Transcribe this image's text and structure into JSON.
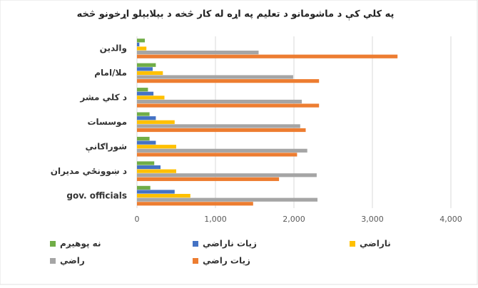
{
  "chart_data": {
    "type": "hbar",
    "title": "په کلي کې د ماشومانو د تعلیم په اړه له کار څخه د بېلابېلو اړخونو څخه",
    "categories": [
      "والدین",
      "ملا/امام",
      "د کلي مشر",
      "موسسات",
      "شوراګانې",
      "د ښوونځي مدیران",
      "gov. officials"
    ],
    "series": [
      {
        "name": "نه پوهیږم",
        "color": "#70ad47",
        "values": [
          100,
          240,
          140,
          160,
          160,
          220,
          170
        ]
      },
      {
        "name": "زیات ناراضي",
        "color": "#4472c4",
        "values": [
          30,
          200,
          210,
          240,
          240,
          300,
          480
        ]
      },
      {
        "name": "ناراضي",
        "color": "#ffc000",
        "values": [
          120,
          330,
          350,
          480,
          500,
          500,
          680
        ]
      },
      {
        "name": "راضي",
        "color": "#a5a5a5",
        "values": [
          1550,
          1990,
          2100,
          2080,
          2170,
          2290,
          2300
        ]
      },
      {
        "name": "زیات راضي",
        "color": "#ed7d31",
        "values": [
          3320,
          2320,
          2320,
          2150,
          2040,
          1810,
          1480
        ]
      }
    ],
    "xlim": [
      0,
      4000
    ],
    "xticks": [
      0,
      {
        "value": 1000,
        "label": "1,000"
      },
      {
        "value": 2000,
        "label": "2,000"
      },
      {
        "value": 3000,
        "label": "3,000"
      },
      {
        "value": 4000,
        "label": "4,000"
      }
    ],
    "grid": true,
    "legend": "bottom"
  }
}
